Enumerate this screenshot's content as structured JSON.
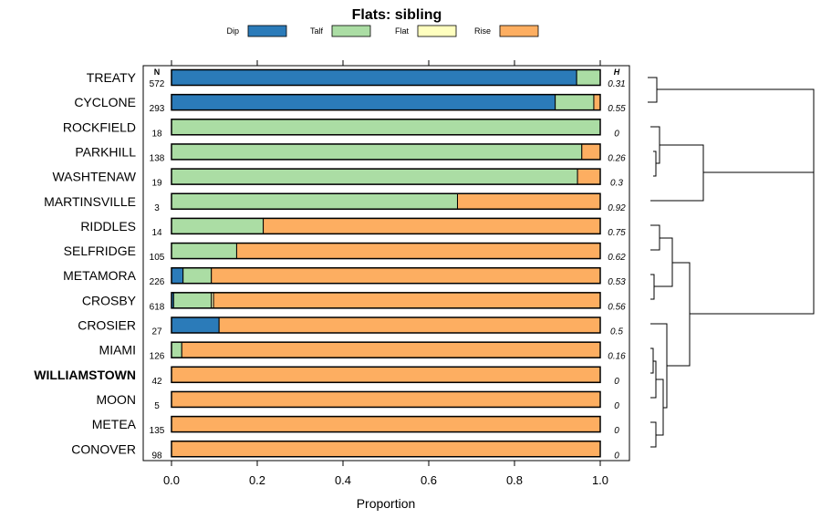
{
  "chart_data": {
    "type": "bar",
    "stacked": true,
    "orientation": "horizontal",
    "title": "Flats: sibling",
    "xlabel": "Proportion",
    "ylabel": "",
    "xlim": [
      0,
      1
    ],
    "x_ticks": [
      "0.0",
      "0.2",
      "0.4",
      "0.6",
      "0.8",
      "1.0"
    ],
    "n_header": "N",
    "h_header": "H",
    "legend": [
      {
        "name": "Dip",
        "color": "#2b7bb9"
      },
      {
        "name": "Talf",
        "color": "#abdda4"
      },
      {
        "name": "Flat",
        "color": "#ffffbf"
      },
      {
        "name": "Rise",
        "color": "#fdae61"
      }
    ],
    "categories": [
      "TREATY",
      "CYCLONE",
      "ROCKFIELD",
      "PARKHILL",
      "WASHTENAW",
      "MARTINSVILLE",
      "RIDDLES",
      "SELFRIDGE",
      "METAMORA",
      "CROSBY",
      "CROSIER",
      "MIAMI",
      "WILLIAMSTOWN",
      "MOON",
      "METEA",
      "CONOVER"
    ],
    "highlighted": "WILLIAMSTOWN",
    "n": [
      "572",
      "293",
      "18",
      "138",
      "19",
      "3",
      "14",
      "105",
      "226",
      "618",
      "27",
      "126",
      "42",
      "5",
      "135",
      "98"
    ],
    "h": [
      "0.31",
      "0.55",
      "0",
      "0.26",
      "0.3",
      "0.92",
      "0.75",
      "0.62",
      "0.53",
      "0.56",
      "0.5",
      "0.16",
      "0",
      "0",
      "0",
      "0"
    ],
    "series": [
      {
        "name": "Dip",
        "values": [
          0.945,
          0.895,
          0,
          0,
          0,
          0,
          0,
          0,
          0.027,
          0.005,
          0.111,
          0,
          0,
          0,
          0,
          0
        ]
      },
      {
        "name": "Talf",
        "values": [
          0.055,
          0.09,
          1.0,
          0.957,
          0.947,
          0.667,
          0.214,
          0.152,
          0.066,
          0.088,
          0,
          0.024,
          0,
          0,
          0,
          0
        ]
      },
      {
        "name": "Flat",
        "values": [
          0,
          0,
          0,
          0,
          0,
          0,
          0,
          0,
          0,
          0.005,
          0,
          0,
          0,
          0,
          0,
          0
        ]
      },
      {
        "name": "Rise",
        "values": [
          0,
          0.015,
          0,
          0.043,
          0.053,
          0.333,
          0.786,
          0.848,
          0.907,
          0.902,
          0.889,
          0.976,
          1.0,
          1.0,
          1.0,
          1.0
        ]
      }
    ],
    "dendrogram": {
      "type": "hierarchical-clustering",
      "leaf_order": [
        "TREATY",
        "CYCLONE",
        "ROCKFIELD",
        "PARKHILL",
        "WASHTENAW",
        "MARTINSVILLE",
        "RIDDLES",
        "SELFRIDGE",
        "METAMORA",
        "CROSBY",
        "CROSIER",
        "MIAMI",
        "WILLIAMSTOWN",
        "MOON",
        "METEA",
        "CONOVER"
      ]
    }
  }
}
